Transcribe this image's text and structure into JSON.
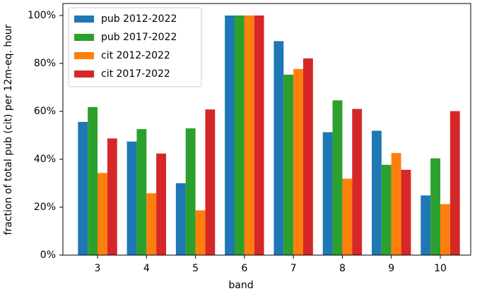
{
  "chart_data": {
    "type": "bar",
    "xlabel": "band",
    "ylabel": "fraction of total pub (cit) per 12m-eq. hour",
    "categories": [
      "3",
      "4",
      "5",
      "6",
      "7",
      "8",
      "9",
      "10"
    ],
    "series": [
      {
        "name": "pub 2012-2022",
        "color": "#1f77b4",
        "values": [
          55.6,
          47.4,
          30.0,
          100,
          89.3,
          51.3,
          51.9,
          24.9
        ]
      },
      {
        "name": "pub 2017-2022",
        "color": "#2ca02c",
        "values": [
          61.8,
          52.6,
          52.9,
          100,
          75.3,
          64.6,
          37.7,
          40.4
        ]
      },
      {
        "name": "cit 2012-2022",
        "color": "#ff7f0e",
        "values": [
          34.3,
          25.8,
          18.7,
          100,
          77.7,
          31.9,
          42.6,
          21.3
        ]
      },
      {
        "name": "cit 2017-2022",
        "color": "#d62728",
        "values": [
          48.7,
          42.4,
          60.8,
          100,
          82.1,
          61.0,
          35.6,
          60.1
        ]
      }
    ],
    "ylim": [
      0,
      105
    ],
    "yticks": [
      {
        "value": 0,
        "label": "0%"
      },
      {
        "value": 20,
        "label": "20%"
      },
      {
        "value": 40,
        "label": "40%"
      },
      {
        "value": 60,
        "label": "60%"
      },
      {
        "value": 80,
        "label": "80%"
      },
      {
        "value": 100,
        "label": "100%"
      }
    ],
    "grid": false,
    "legend": "upper left"
  }
}
